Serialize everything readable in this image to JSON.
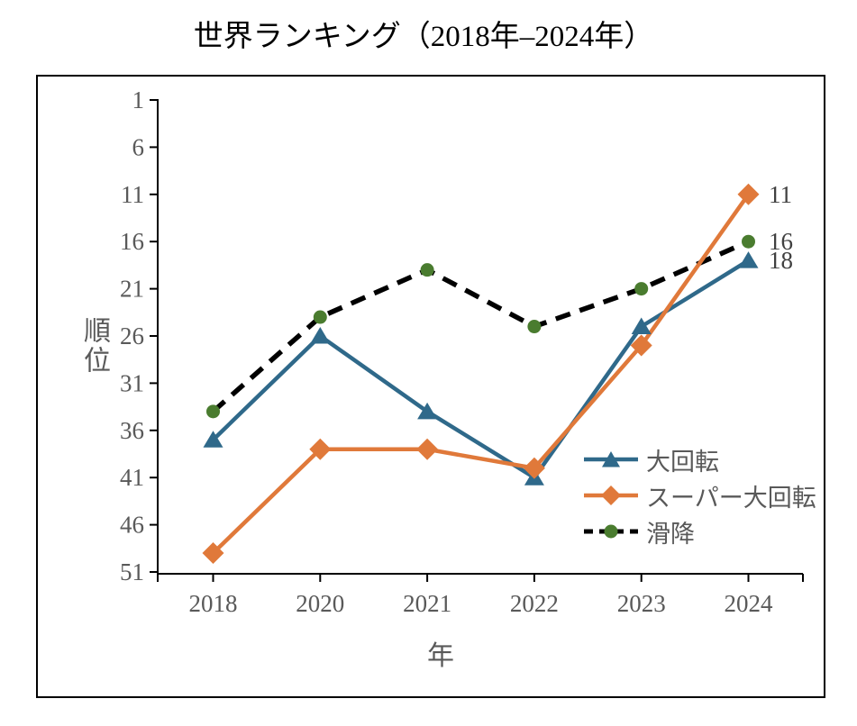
{
  "title": "世界ランキング（2018年–2024年）",
  "figure": {
    "border_color": "#000000",
    "background": "#ffffff"
  },
  "axes": {
    "axis_color": "#000000",
    "tick_label_color": "#595959",
    "axis_title_color": "#595959",
    "data_label_color": "#404040"
  },
  "chart_data": {
    "type": "line",
    "title": "世界ランキング（2018年–2024年）",
    "categories": [
      "2018",
      "2020",
      "2021",
      "2022",
      "2023",
      "2024"
    ],
    "series": [
      {
        "name": "大回転",
        "values": [
          37,
          26,
          34,
          41,
          25,
          18
        ],
        "color": "#2F698A",
        "marker": "triangle",
        "line_style": "solid",
        "end_label": "18"
      },
      {
        "name": "スーパー大回転",
        "values": [
          49,
          38,
          38,
          40,
          27,
          11
        ],
        "color": "#E0793A",
        "marker": "diamond",
        "line_style": "solid",
        "end_label": "11"
      },
      {
        "name": "滑降",
        "values": [
          34,
          24,
          19,
          25,
          21,
          16
        ],
        "color": "#000000",
        "marker_color": "#4A7C2F",
        "marker": "circle",
        "line_style": "dashed",
        "end_label": "16"
      }
    ],
    "xlabel": "年",
    "ylabel": "順位",
    "y_ticks": [
      1,
      6,
      11,
      16,
      21,
      26,
      31,
      36,
      41,
      46,
      51
    ],
    "ylim": [
      1,
      51
    ],
    "y_axis_reversed": true,
    "grid": false,
    "legend_position": "inside-lower-right"
  }
}
